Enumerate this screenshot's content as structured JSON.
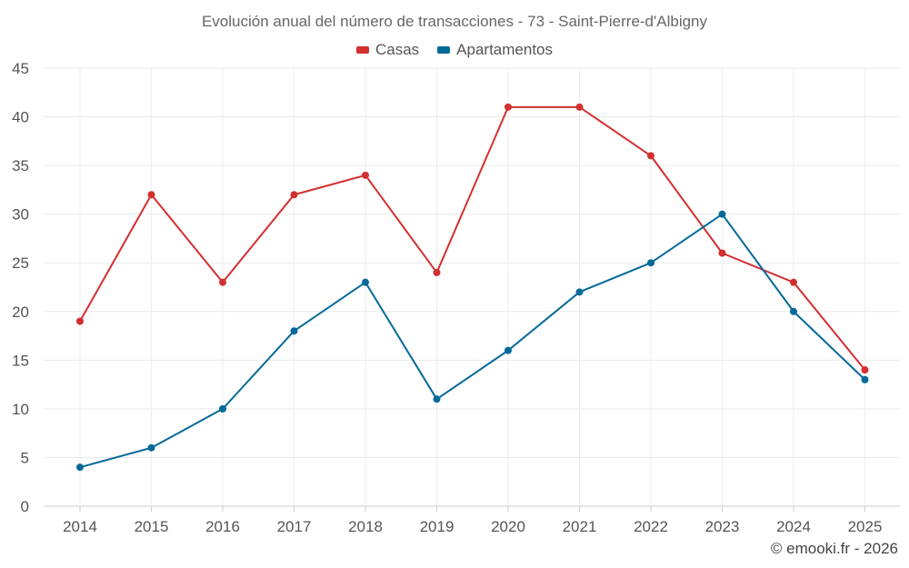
{
  "chart_data": {
    "type": "line",
    "title": "Evolución anual del número de transacciones - 73 - Saint-Pierre-d'Albigny",
    "categories": [
      "2014",
      "2015",
      "2016",
      "2017",
      "2018",
      "2019",
      "2020",
      "2021",
      "2022",
      "2023",
      "2024",
      "2025"
    ],
    "series": [
      {
        "name": "Casas",
        "color": "#d32f2f",
        "values": [
          19,
          32,
          23,
          32,
          34,
          24,
          41,
          41,
          36,
          26,
          23,
          14
        ]
      },
      {
        "name": "Apartamentos",
        "color": "#03699a",
        "values": [
          4,
          6,
          10,
          18,
          23,
          11,
          16,
          22,
          25,
          30,
          20,
          13
        ]
      }
    ],
    "ylim": [
      0,
      45
    ],
    "yticks": [
      0,
      5,
      10,
      15,
      20,
      25,
      30,
      35,
      40,
      45
    ],
    "xlabel": "",
    "ylabel": "",
    "grid": true,
    "legend_position": "top-center"
  },
  "credit": "© emooki.fr - 2026"
}
